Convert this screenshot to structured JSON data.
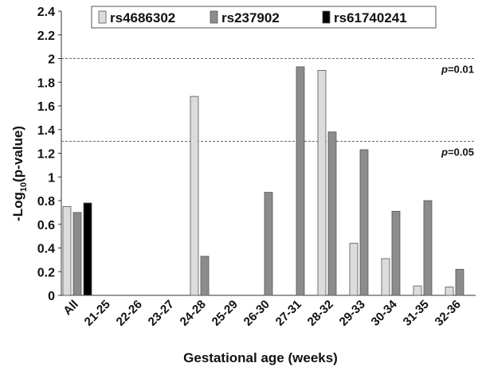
{
  "chart_data": {
    "type": "bar",
    "xlabel": "Gestational age (weeks)",
    "ylabel_main": "-Log",
    "ylabel_sub": "10",
    "ylabel_tail": "(p-value)",
    "ylim": [
      0,
      2.4
    ],
    "yticks": [
      "0",
      "0.2",
      "0.4",
      "0.6",
      "0.8",
      "1",
      "1.2",
      "1.4",
      "1.6",
      "1.8",
      "2",
      "2.2",
      "2.4"
    ],
    "grid": false,
    "legend_position": "top",
    "categories": [
      "All",
      "21-25",
      "22-26",
      "23-27",
      "24-28",
      "25-29",
      "26-30",
      "27-31",
      "28-32",
      "29-33",
      "30-34",
      "31-35",
      "32-36"
    ],
    "series": [
      {
        "name": "rs4686302",
        "color": "#dcdcdc",
        "values": [
          0.75,
          null,
          null,
          null,
          1.68,
          null,
          null,
          null,
          1.9,
          0.44,
          0.31,
          0.08,
          0.07
        ]
      },
      {
        "name": "rs237902",
        "color": "#8c8c8c",
        "values": [
          0.7,
          null,
          null,
          null,
          0.33,
          null,
          0.87,
          1.93,
          1.38,
          1.23,
          0.71,
          0.8,
          0.22
        ]
      },
      {
        "name": "rs61740241",
        "color": "#000000",
        "values": [
          0.78,
          null,
          null,
          null,
          null,
          null,
          null,
          null,
          null,
          null,
          null,
          null,
          null
        ]
      }
    ],
    "thresholds": [
      {
        "value": 2.0,
        "p_label": "p",
        "eq_label": "=0.01"
      },
      {
        "value": 1.301,
        "p_label": "p",
        "eq_label": "=0.05"
      }
    ]
  }
}
